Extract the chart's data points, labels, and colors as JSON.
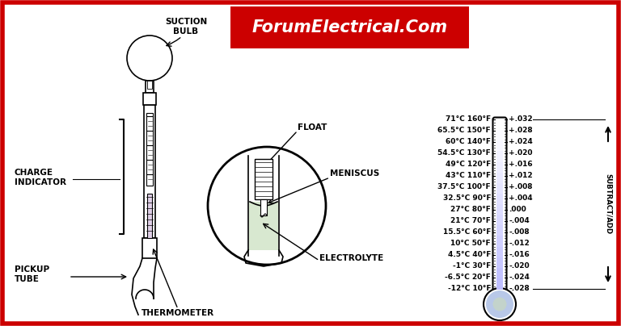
{
  "bg_color": "#ffffff",
  "border_color": "#cc0000",
  "title_bg": "#cc0000",
  "title_text": "ForumElectrical.Com",
  "title_color": "#ffffff",
  "temp_labels": [
    [
      "71°C 160°F",
      "+.032"
    ],
    [
      "65.5°C 150°F",
      "+.028"
    ],
    [
      "60°C 140°F",
      "+.024"
    ],
    [
      "54.5°C 130°F",
      "+.020"
    ],
    [
      "49°C 120°F",
      "+.016"
    ],
    [
      "43°C 110°F",
      "+.012"
    ],
    [
      "37.5°C 100°F",
      "+.008"
    ],
    [
      "32.5°C 90°F",
      "+.004"
    ],
    [
      "27°C 80°F",
      ".000"
    ],
    [
      "21°C 70°F",
      "-.004"
    ],
    [
      "15.5°C 60°F",
      "-.008"
    ],
    [
      "10°C 50°F",
      "-.012"
    ],
    [
      "4.5°C 40°F",
      "-.016"
    ],
    [
      "-1°C 30°F",
      "-.020"
    ],
    [
      "-6.5°C 20°F",
      "-.024"
    ],
    [
      "-12°C 10°F",
      "-.028"
    ]
  ],
  "diagram_labels": {
    "suction_bulb": "SUCTION\nBULB",
    "float": "FLOAT",
    "meniscus": "MENISCUS",
    "charge_indicator": "CHARGE\nINDICATOR",
    "pickup_tube": "PICKUP\nTUBE",
    "thermometer": "THERMOMETER",
    "electrolyte": "ELECTROLYTE"
  },
  "subtract_add_label": "SUBTRACT/ADD",
  "font_size_small": 6.5,
  "font_size_label": 7.5,
  "font_size_title": 15
}
